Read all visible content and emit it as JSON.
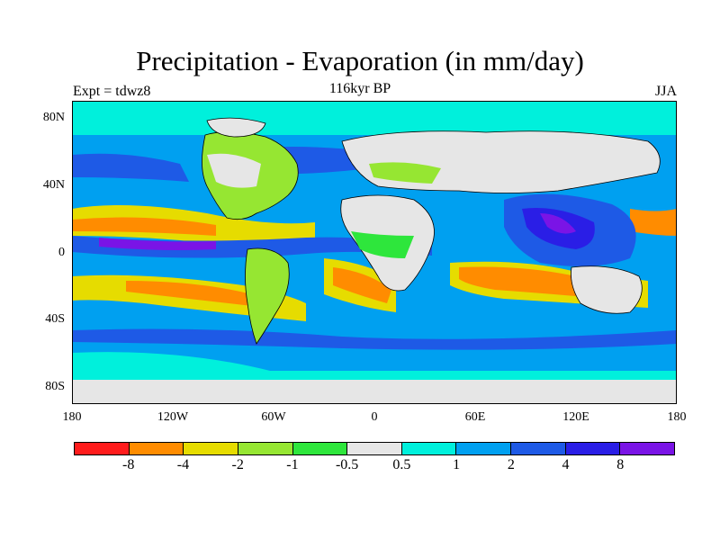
{
  "title": "Precipitation - Evaporation (in mm/day)",
  "subtitle_center": "116kyr BP",
  "subtitle_left": "Expt = tdwz8",
  "subtitle_right": "JJA",
  "lat_ticks": [
    "80N",
    "40N",
    "0",
    "40S",
    "80S"
  ],
  "lon_ticks": [
    "180",
    "120W",
    "60W",
    "0",
    "60E",
    "120E",
    "180"
  ],
  "colorbar": {
    "colors": [
      "#ff1c1c",
      "#ff8c00",
      "#e6dc00",
      "#96e632",
      "#2ee63c",
      "#e6e6e6",
      "#00f0dc",
      "#00a0f0",
      "#1e5ae6",
      "#2a1ee6",
      "#7a14e6"
    ],
    "labels": [
      "-8",
      "-4",
      "-2",
      "-1",
      "-0.5",
      "0.5",
      "1",
      "2",
      "4",
      "8"
    ]
  },
  "map_colors": {
    "background": "#00a0f0",
    "land_outline": "#000000"
  }
}
